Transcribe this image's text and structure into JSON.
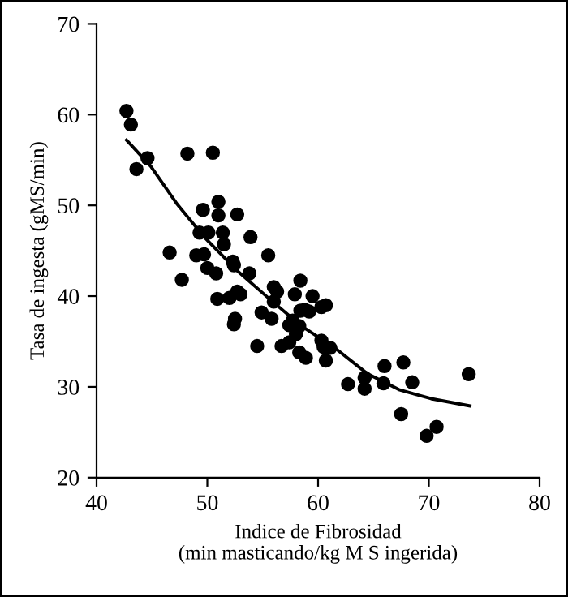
{
  "chart_data": {
    "type": "scatter",
    "xlabel": "Indice de Fibrosidad\n(min masticando/kg M S ingerida)",
    "ylabel": "Tasa de ingesta (gMS/min)",
    "xlim": [
      40,
      80
    ],
    "ylim": [
      20,
      70
    ],
    "xticks": [
      40,
      50,
      60,
      70,
      80
    ],
    "yticks": [
      20,
      30,
      40,
      50,
      60,
      70
    ],
    "grid": false,
    "marker": "circle",
    "series": [
      {
        "color": "#000000",
        "x": [
          42.7,
          43.1,
          43.6,
          44.6,
          46.6,
          47.7,
          48.2,
          49.0,
          49.3,
          49.6,
          49.7,
          50.0,
          50.1,
          50.5,
          50.8,
          50.9,
          51.0,
          51.0,
          51.4,
          51.5,
          52.0,
          52.3,
          52.4,
          52.5,
          52.4,
          52.7,
          52.7,
          53.0,
          53.8,
          53.9,
          54.5,
          54.9,
          55.5,
          55.8,
          56.0,
          56.0,
          56.3,
          56.7,
          57.4,
          57.4,
          57.7,
          57.9,
          58.0,
          58.3,
          58.4,
          58.4,
          58.3,
          58.9,
          58.8,
          59.2,
          59.5,
          60.3,
          60.7,
          60.3,
          60.5,
          60.7,
          61.1,
          62.7,
          64.2,
          64.2,
          65.9,
          66.0,
          67.5,
          67.7,
          68.5,
          69.8,
          70.7,
          73.6
        ],
        "values": [
          60.4,
          58.9,
          54.0,
          55.2,
          44.8,
          41.8,
          55.7,
          44.5,
          47.0,
          49.5,
          44.6,
          43.1,
          47.0,
          55.8,
          42.5,
          39.7,
          50.4,
          48.9,
          47.0,
          45.7,
          39.8,
          43.8,
          43.4,
          37.5,
          36.9,
          49.0,
          40.5,
          40.2,
          42.5,
          46.5,
          34.5,
          38.2,
          44.5,
          37.5,
          39.4,
          41.0,
          40.5,
          34.5,
          34.9,
          36.8,
          37.3,
          40.2,
          35.8,
          36.7,
          41.7,
          38.4,
          33.8,
          33.2,
          38.5,
          38.3,
          40.0,
          38.8,
          39.0,
          35.1,
          34.4,
          32.9,
          34.3,
          30.3,
          31.0,
          29.8,
          30.4,
          32.3,
          27.0,
          32.7,
          30.5,
          24.6,
          25.6,
          31.4
        ]
      },
      {
        "type": "line",
        "color": "#000000",
        "marker": "none",
        "line_style": "solid",
        "x": [
          42.7,
          44.9,
          47.3,
          49.8,
          52.7,
          55.6,
          58.5,
          61.5,
          64.4,
          67.3,
          70.2,
          73.7
        ],
        "values": [
          57.2,
          54.3,
          50.1,
          46.4,
          42.8,
          39.7,
          36.7,
          34.3,
          31.5,
          29.7,
          28.7,
          27.9
        ]
      }
    ]
  }
}
